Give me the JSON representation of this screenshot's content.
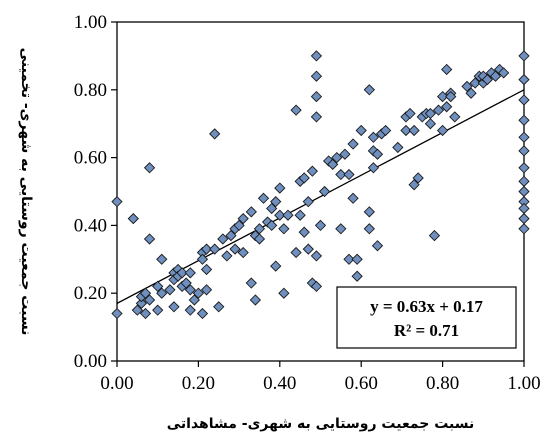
{
  "chart_data": {
    "type": "scatter",
    "title": "",
    "xlabel": "نسبت جمعیت روستایی به شهری- مشاهداتی",
    "ylabel": "نسبت جمعیت روستایی به شهری- تخمینی",
    "xlim": [
      0,
      1
    ],
    "ylim": [
      0,
      1
    ],
    "x_ticks": [
      "0.00",
      "0.20",
      "0.40",
      "0.60",
      "0.80",
      "1.00"
    ],
    "y_ticks": [
      "0.00",
      "0.20",
      "0.40",
      "0.60",
      "0.80",
      "1.00"
    ],
    "grid": false,
    "marker": "diamond",
    "marker_color": "#6f8fbf",
    "trendline": {
      "slope": 0.63,
      "intercept": 0.17
    },
    "equation": "y = 0.63x + 0.17",
    "r_squared": "R² = 0.71",
    "points": [
      [
        0.0,
        0.47
      ],
      [
        0.0,
        0.14
      ],
      [
        0.04,
        0.42
      ],
      [
        0.05,
        0.15
      ],
      [
        0.06,
        0.17
      ],
      [
        0.06,
        0.19
      ],
      [
        0.07,
        0.2
      ],
      [
        0.07,
        0.14
      ],
      [
        0.08,
        0.36
      ],
      [
        0.08,
        0.57
      ],
      [
        0.08,
        0.18
      ],
      [
        0.1,
        0.22
      ],
      [
        0.1,
        0.15
      ],
      [
        0.11,
        0.2
      ],
      [
        0.11,
        0.3
      ],
      [
        0.13,
        0.21
      ],
      [
        0.14,
        0.26
      ],
      [
        0.14,
        0.24
      ],
      [
        0.14,
        0.16
      ],
      [
        0.15,
        0.27
      ],
      [
        0.15,
        0.25
      ],
      [
        0.16,
        0.26
      ],
      [
        0.16,
        0.22
      ],
      [
        0.17,
        0.23
      ],
      [
        0.18,
        0.26
      ],
      [
        0.18,
        0.21
      ],
      [
        0.18,
        0.15
      ],
      [
        0.19,
        0.18
      ],
      [
        0.2,
        0.2
      ],
      [
        0.21,
        0.32
      ],
      [
        0.21,
        0.3
      ],
      [
        0.21,
        0.14
      ],
      [
        0.22,
        0.33
      ],
      [
        0.22,
        0.27
      ],
      [
        0.22,
        0.21
      ],
      [
        0.24,
        0.67
      ],
      [
        0.24,
        0.33
      ],
      [
        0.25,
        0.16
      ],
      [
        0.26,
        0.36
      ],
      [
        0.27,
        0.31
      ],
      [
        0.28,
        0.37
      ],
      [
        0.29,
        0.39
      ],
      [
        0.29,
        0.33
      ],
      [
        0.3,
        0.4
      ],
      [
        0.31,
        0.42
      ],
      [
        0.31,
        0.32
      ],
      [
        0.33,
        0.23
      ],
      [
        0.33,
        0.44
      ],
      [
        0.34,
        0.18
      ],
      [
        0.34,
        0.37
      ],
      [
        0.35,
        0.36
      ],
      [
        0.35,
        0.39
      ],
      [
        0.36,
        0.48
      ],
      [
        0.37,
        0.41
      ],
      [
        0.38,
        0.4
      ],
      [
        0.38,
        0.45
      ],
      [
        0.39,
        0.28
      ],
      [
        0.39,
        0.47
      ],
      [
        0.4,
        0.51
      ],
      [
        0.4,
        0.43
      ],
      [
        0.41,
        0.39
      ],
      [
        0.41,
        0.2
      ],
      [
        0.42,
        0.43
      ],
      [
        0.44,
        0.74
      ],
      [
        0.44,
        0.32
      ],
      [
        0.45,
        0.43
      ],
      [
        0.45,
        0.53
      ],
      [
        0.46,
        0.38
      ],
      [
        0.46,
        0.54
      ],
      [
        0.47,
        0.47
      ],
      [
        0.47,
        0.33
      ],
      [
        0.48,
        0.56
      ],
      [
        0.48,
        0.23
      ],
      [
        0.49,
        0.9
      ],
      [
        0.49,
        0.84
      ],
      [
        0.49,
        0.78
      ],
      [
        0.49,
        0.72
      ],
      [
        0.49,
        0.31
      ],
      [
        0.49,
        0.22
      ],
      [
        0.5,
        0.4
      ],
      [
        0.51,
        0.5
      ],
      [
        0.52,
        0.59
      ],
      [
        0.53,
        0.58
      ],
      [
        0.54,
        0.6
      ],
      [
        0.55,
        0.39
      ],
      [
        0.55,
        0.55
      ],
      [
        0.56,
        0.61
      ],
      [
        0.57,
        0.55
      ],
      [
        0.57,
        0.3
      ],
      [
        0.58,
        0.64
      ],
      [
        0.58,
        0.48
      ],
      [
        0.59,
        0.3
      ],
      [
        0.59,
        0.25
      ],
      [
        0.6,
        0.68
      ],
      [
        0.62,
        0.44
      ],
      [
        0.62,
        0.39
      ],
      [
        0.62,
        0.8
      ],
      [
        0.63,
        0.62
      ],
      [
        0.63,
        0.66
      ],
      [
        0.63,
        0.57
      ],
      [
        0.64,
        0.61
      ],
      [
        0.64,
        0.34
      ],
      [
        0.65,
        0.67
      ],
      [
        0.66,
        0.68
      ],
      [
        0.69,
        0.63
      ],
      [
        0.71,
        0.68
      ],
      [
        0.71,
        0.72
      ],
      [
        0.72,
        0.73
      ],
      [
        0.73,
        0.52
      ],
      [
        0.73,
        0.68
      ],
      [
        0.74,
        0.54
      ],
      [
        0.75,
        0.72
      ],
      [
        0.76,
        0.73
      ],
      [
        0.77,
        0.7
      ],
      [
        0.77,
        0.73
      ],
      [
        0.78,
        0.37
      ],
      [
        0.79,
        0.74
      ],
      [
        0.8,
        0.68
      ],
      [
        0.8,
        0.78
      ],
      [
        0.81,
        0.86
      ],
      [
        0.81,
        0.75
      ],
      [
        0.82,
        0.79
      ],
      [
        0.82,
        0.78
      ],
      [
        0.83,
        0.72
      ],
      [
        0.86,
        0.81
      ],
      [
        0.87,
        0.79
      ],
      [
        0.88,
        0.82
      ],
      [
        0.89,
        0.84
      ],
      [
        0.9,
        0.82
      ],
      [
        0.9,
        0.84
      ],
      [
        0.91,
        0.83
      ],
      [
        0.92,
        0.85
      ],
      [
        0.93,
        0.84
      ],
      [
        0.94,
        0.86
      ],
      [
        0.95,
        0.85
      ],
      [
        1.0,
        0.9
      ],
      [
        1.0,
        0.83
      ],
      [
        1.0,
        0.77
      ],
      [
        1.0,
        0.71
      ],
      [
        1.0,
        0.66
      ],
      [
        1.0,
        0.62
      ],
      [
        1.0,
        0.57
      ],
      [
        1.0,
        0.53
      ],
      [
        1.0,
        0.5
      ],
      [
        1.0,
        0.47
      ],
      [
        1.0,
        0.45
      ],
      [
        1.0,
        0.42
      ],
      [
        1.0,
        0.39
      ]
    ]
  }
}
